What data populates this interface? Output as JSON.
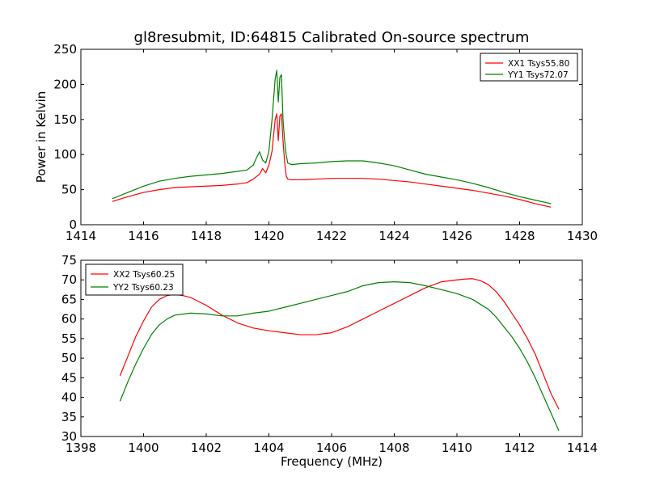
{
  "figure": {
    "title": "gl8resubmit, ID:64815 Calibrated On-source spectrum"
  },
  "chart_data": [
    {
      "type": "line",
      "title": "gl8resubmit, ID:64815 Calibrated On-source spectrum",
      "xlabel": "",
      "ylabel": "Power in Kelvin",
      "xlim": [
        1414,
        1430
      ],
      "ylim": [
        0,
        250
      ],
      "xticks": [
        "1414",
        "1416",
        "1418",
        "1420",
        "1422",
        "1424",
        "1426",
        "1428",
        "1430"
      ],
      "yticks": [
        "0",
        "50",
        "100",
        "150",
        "200",
        "250"
      ],
      "legend_position": "top-right",
      "grid": false,
      "series": [
        {
          "name": "XX1 Tsys55.80",
          "color": "#ff0000",
          "x": [
            1415.0,
            1415.5,
            1416.0,
            1416.5,
            1417.0,
            1417.5,
            1418.0,
            1418.5,
            1419.0,
            1419.3,
            1419.5,
            1419.7,
            1419.8,
            1419.9,
            1420.0,
            1420.1,
            1420.2,
            1420.25,
            1420.3,
            1420.35,
            1420.4,
            1420.45,
            1420.5,
            1420.55,
            1420.6,
            1420.7,
            1420.8,
            1421.0,
            1421.5,
            1422.0,
            1422.5,
            1423.0,
            1423.5,
            1424.0,
            1424.5,
            1425.0,
            1425.5,
            1426.0,
            1426.5,
            1427.0,
            1427.5,
            1428.0,
            1428.5,
            1429.0
          ],
          "values": [
            33,
            40,
            46,
            50,
            53,
            54,
            55,
            56,
            58,
            60,
            65,
            72,
            80,
            74,
            85,
            105,
            150,
            158,
            120,
            155,
            158,
            120,
            90,
            70,
            65,
            64,
            64,
            64,
            65,
            66,
            66,
            66,
            65,
            63,
            61,
            58,
            55,
            52,
            49,
            45,
            41,
            36,
            30,
            25
          ]
        },
        {
          "name": "YY1 Tsys72.07",
          "color": "#008000",
          "x": [
            1415.0,
            1415.5,
            1416.0,
            1416.5,
            1417.0,
            1417.5,
            1418.0,
            1418.5,
            1419.0,
            1419.3,
            1419.5,
            1419.6,
            1419.7,
            1419.8,
            1419.9,
            1420.0,
            1420.1,
            1420.2,
            1420.25,
            1420.3,
            1420.35,
            1420.4,
            1420.45,
            1420.5,
            1420.55,
            1420.6,
            1420.7,
            1420.8,
            1421.0,
            1421.5,
            1422.0,
            1422.5,
            1423.0,
            1423.5,
            1424.0,
            1424.5,
            1425.0,
            1425.5,
            1426.0,
            1426.5,
            1427.0,
            1427.5,
            1428.0,
            1428.5,
            1429.0
          ],
          "values": [
            37,
            46,
            55,
            62,
            66,
            69,
            71,
            73,
            76,
            78,
            85,
            95,
            104,
            92,
            88,
            105,
            150,
            208,
            220,
            175,
            210,
            214,
            150,
            120,
            100,
            88,
            86,
            86,
            87,
            88,
            90,
            91,
            91,
            88,
            84,
            78,
            72,
            68,
            64,
            59,
            53,
            46,
            40,
            35,
            30
          ]
        }
      ]
    },
    {
      "type": "line",
      "title": "",
      "xlabel": "Frequency (MHz)",
      "ylabel": "",
      "xlim": [
        1398,
        1414
      ],
      "ylim": [
        30,
        75
      ],
      "xticks": [
        "1398",
        "1400",
        "1402",
        "1404",
        "1406",
        "1408",
        "1410",
        "1412",
        "1414"
      ],
      "yticks": [
        "30",
        "35",
        "40",
        "45",
        "50",
        "55",
        "60",
        "65",
        "70",
        "75"
      ],
      "legend_position": "top-left",
      "grid": false,
      "series": [
        {
          "name": "XX2 Tsys60.25",
          "color": "#ff0000",
          "x": [
            1399.25,
            1399.5,
            1399.75,
            1400.0,
            1400.25,
            1400.5,
            1400.75,
            1401.0,
            1401.25,
            1401.5,
            1401.75,
            1402.0,
            1402.5,
            1403.0,
            1403.5,
            1404.0,
            1404.5,
            1405.0,
            1405.5,
            1406.0,
            1406.5,
            1407.0,
            1407.5,
            1408.0,
            1408.5,
            1409.0,
            1409.5,
            1410.0,
            1410.25,
            1410.5,
            1410.75,
            1411.0,
            1411.25,
            1411.5,
            1411.75,
            1412.0,
            1412.25,
            1412.5,
            1412.75,
            1413.0,
            1413.25
          ],
          "values": [
            45.5,
            50.5,
            55.5,
            59.5,
            63.0,
            65.0,
            66.0,
            66.3,
            66.0,
            65.5,
            64.5,
            63.5,
            61.0,
            59.0,
            57.7,
            57.0,
            56.5,
            56.0,
            56.0,
            56.5,
            58.0,
            60.0,
            62.0,
            64.0,
            66.0,
            68.0,
            69.5,
            70.0,
            70.2,
            70.3,
            69.8,
            68.8,
            67.0,
            64.5,
            61.5,
            58.5,
            55.0,
            51.0,
            46.0,
            41.0,
            37.0
          ]
        },
        {
          "name": "YY2 Tsys60.23",
          "color": "#008000",
          "x": [
            1399.25,
            1399.5,
            1399.75,
            1400.0,
            1400.25,
            1400.5,
            1400.75,
            1401.0,
            1401.5,
            1402.0,
            1402.5,
            1403.0,
            1403.5,
            1404.0,
            1404.5,
            1405.0,
            1405.5,
            1406.0,
            1406.5,
            1407.0,
            1407.5,
            1408.0,
            1408.5,
            1409.0,
            1409.5,
            1410.0,
            1410.5,
            1411.0,
            1411.25,
            1411.5,
            1411.75,
            1412.0,
            1412.25,
            1412.5,
            1412.75,
            1413.0,
            1413.25
          ],
          "values": [
            39.0,
            44.0,
            48.5,
            52.5,
            56.0,
            58.5,
            60.0,
            61.0,
            61.5,
            61.3,
            60.8,
            60.8,
            61.5,
            62.0,
            63.0,
            64.0,
            65.0,
            66.0,
            67.0,
            68.5,
            69.3,
            69.5,
            69.3,
            68.5,
            67.5,
            66.5,
            65.0,
            62.5,
            60.5,
            58.0,
            55.5,
            52.5,
            49.0,
            45.0,
            40.5,
            36.0,
            31.5
          ]
        }
      ]
    }
  ]
}
